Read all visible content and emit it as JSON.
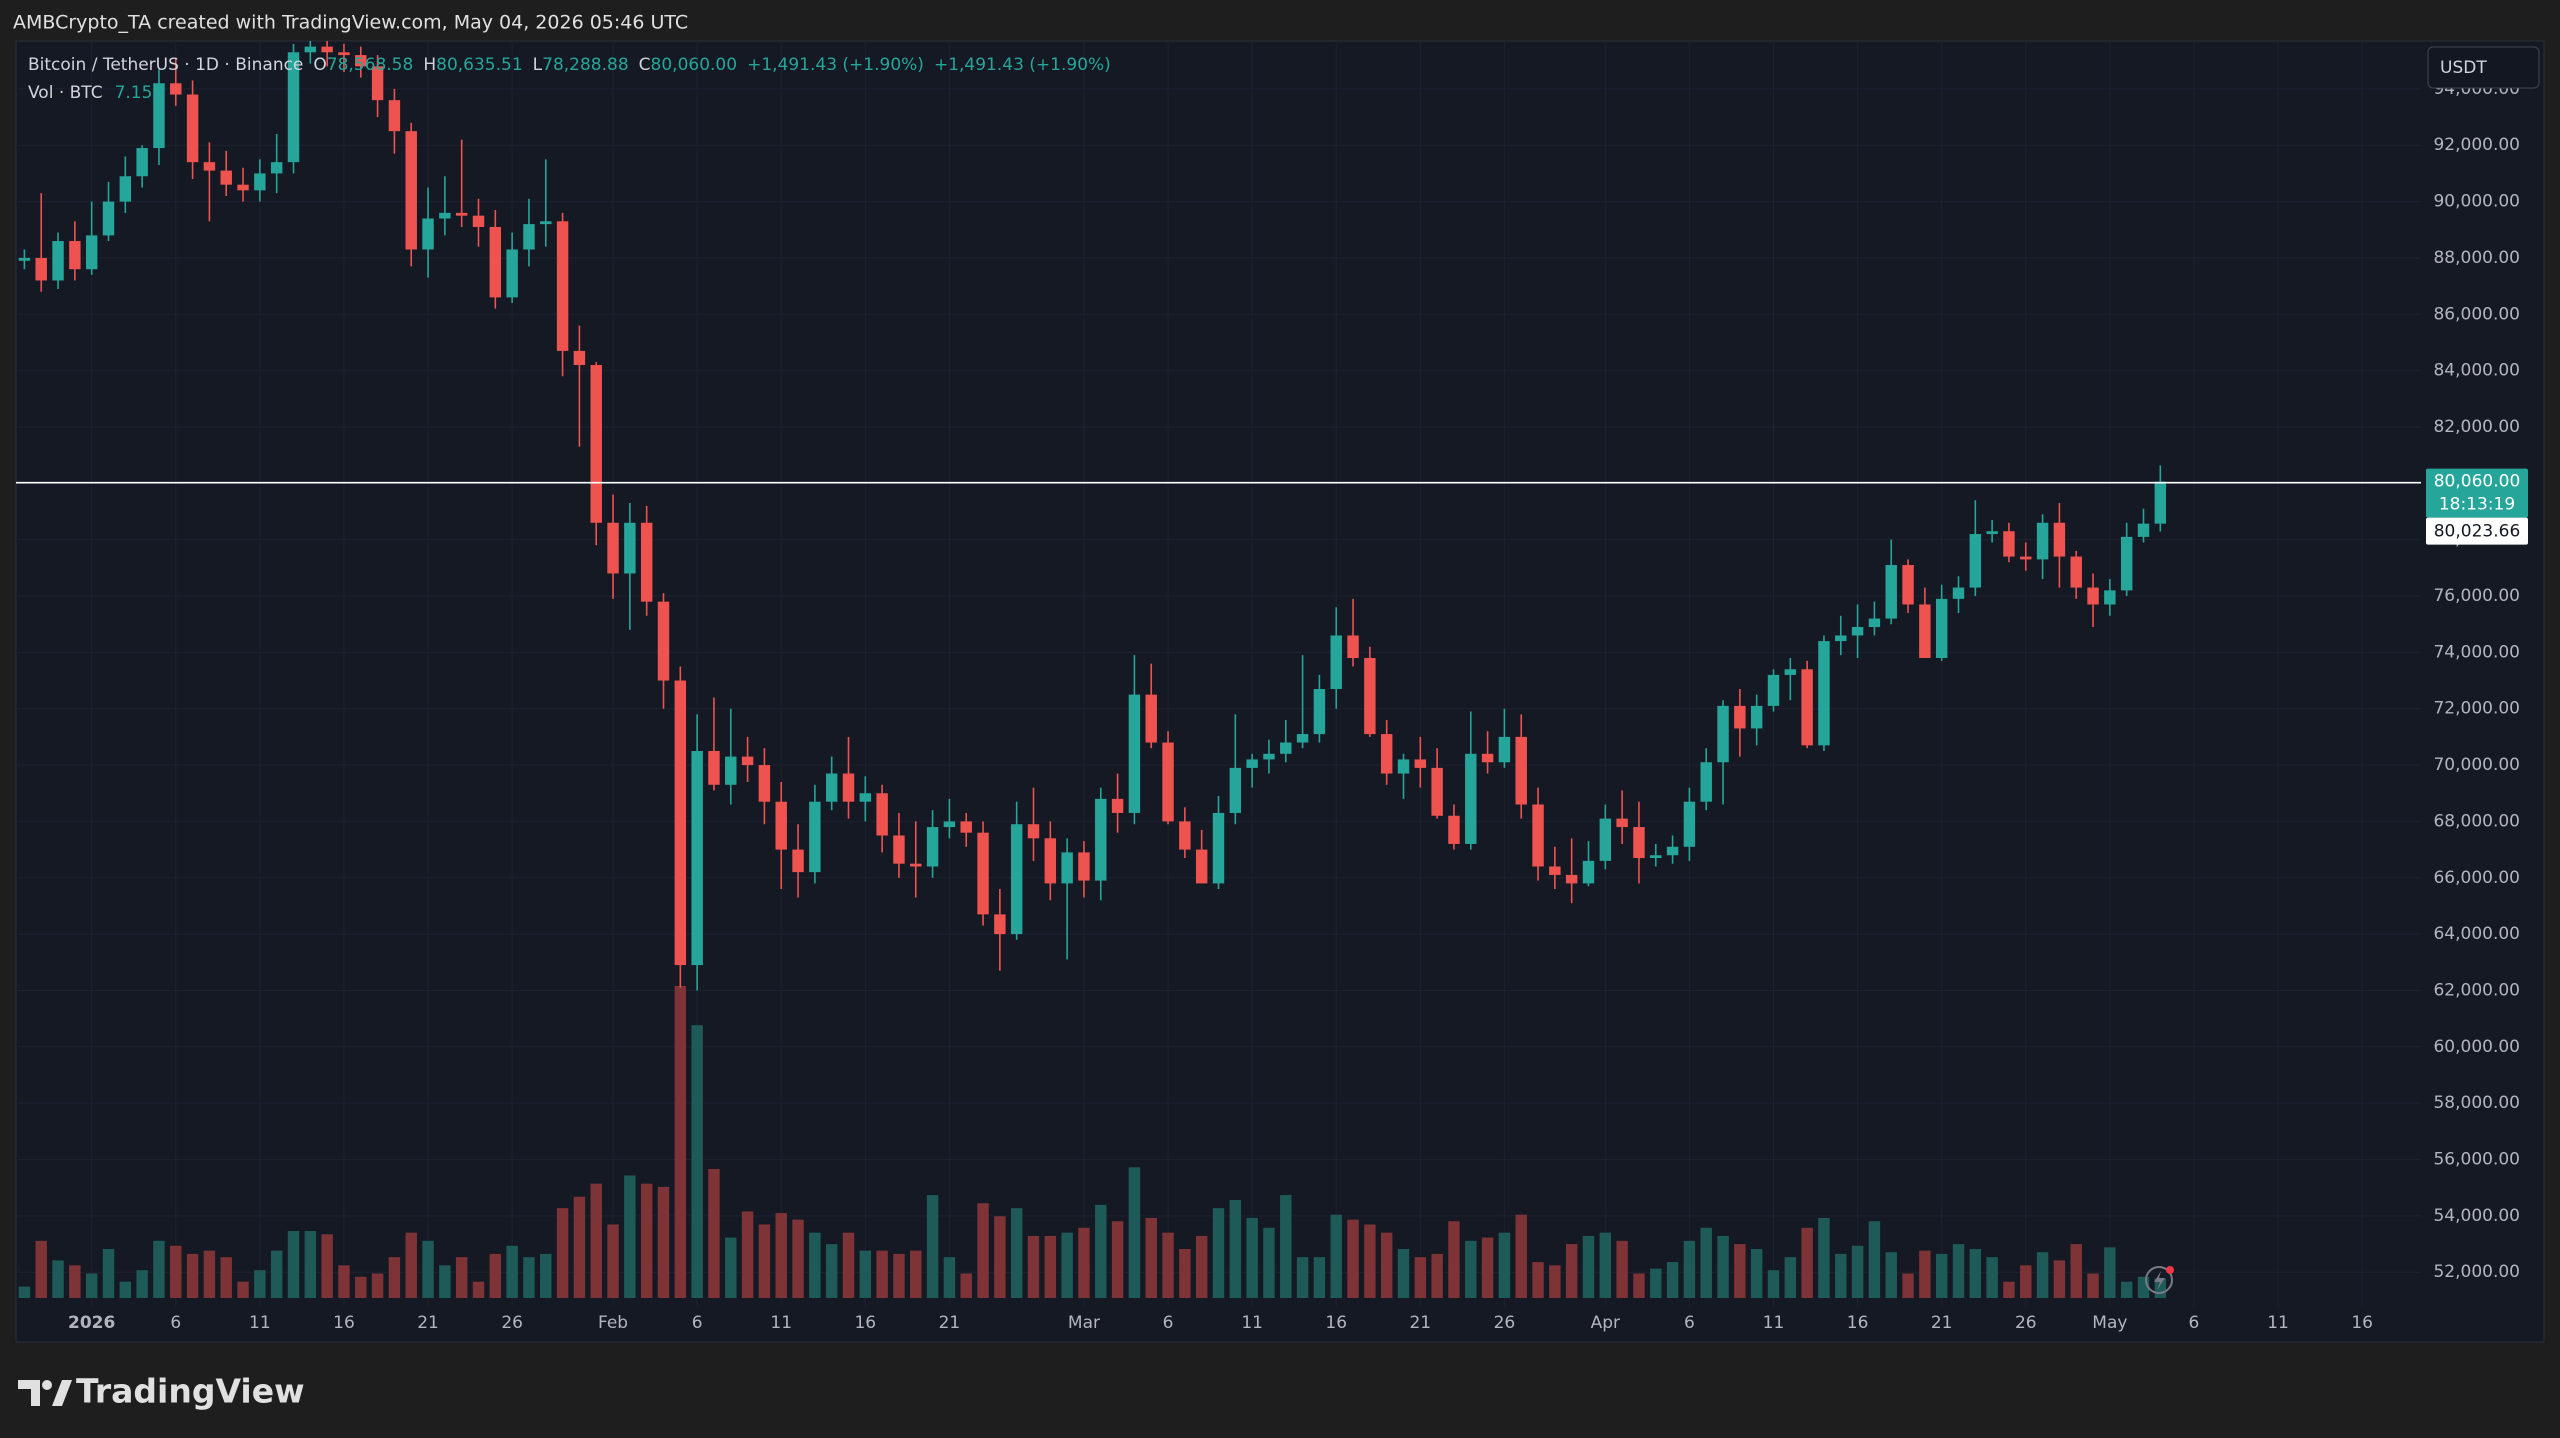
{
  "header": {
    "caption": "AMBCrypto_TA created with TradingView.com, May 04, 2026 05:46 UTC"
  },
  "footer": {
    "brand": "TradingView"
  },
  "chart_data": {
    "type": "candlestick",
    "title": "Bitcoin / TetherUS · 1D · Binance",
    "currency": "USDT",
    "ohlc_labels": {
      "O": "78,568.58",
      "H": "80,635.51",
      "L": "78,288.88",
      "C": "80,060.00"
    },
    "change_label": "+1,491.43 (+1.90%)",
    "volume_name": "Vol · BTC",
    "volume_label": "7.15K",
    "last_price_label": "80,060.00",
    "countdown": "18:13:19",
    "hline": {
      "value": 80023.66,
      "label": "80,023.66",
      "color": "#ffffff"
    },
    "up_color": "#26a69a",
    "down_color": "#ef5350",
    "volume_up_color": "#1e5b58",
    "volume_down_color": "#7e3336",
    "grid": true,
    "categories": [
      null,
      null,
      null,
      null,
      "2026",
      null,
      null,
      null,
      null,
      "6",
      null,
      null,
      null,
      null,
      "11",
      null,
      null,
      null,
      null,
      "16",
      null,
      null,
      null,
      null,
      "21",
      null,
      null,
      null,
      null,
      "26",
      null,
      null,
      null,
      null,
      null,
      "Feb",
      null,
      null,
      null,
      null,
      "6",
      null,
      null,
      null,
      null,
      "11",
      null,
      null,
      null,
      null,
      "16",
      null,
      null,
      null,
      null,
      "21",
      null,
      null,
      null,
      null,
      null,
      null,
      null,
      "Mar",
      null,
      null,
      null,
      null,
      "6",
      null,
      null,
      null,
      null,
      "11",
      null,
      null,
      null,
      null,
      "16",
      null,
      null,
      null,
      null,
      "21",
      null,
      null,
      null,
      null,
      "26",
      null,
      null,
      null,
      null,
      null,
      "Apr",
      null,
      null,
      null,
      null,
      "6",
      null,
      null,
      null,
      null,
      "11",
      null,
      null,
      null,
      null,
      "16",
      null,
      null,
      null,
      null,
      "21",
      null,
      null,
      null,
      null,
      "26",
      null,
      null,
      null,
      null,
      "May",
      null,
      null,
      null,
      null,
      "6",
      null,
      null,
      null,
      null,
      "11",
      null,
      null,
      null,
      null,
      "16",
      null,
      null,
      null
    ],
    "open": [
      87900,
      88000,
      87200,
      88600,
      87600,
      88800,
      90000,
      90900,
      91900,
      94200,
      93800,
      91400,
      91100,
      90600,
      90400,
      91000,
      91400,
      95300,
      95500,
      95300,
      95200,
      94800,
      93600,
      92500,
      88300,
      89400,
      89600,
      89500,
      89100,
      86600,
      88300,
      89200,
      89300,
      84700,
      84200,
      78600,
      76800,
      78600,
      75800,
      73000,
      62900,
      70500,
      69300,
      70300,
      70000,
      68700,
      67000,
      66200,
      68700,
      69700,
      68700,
      69000,
      67500,
      66500,
      66400,
      67800,
      68000,
      67600,
      64700,
      64000,
      67900,
      67400,
      65800,
      66900,
      65900,
      68800,
      68300,
      72500,
      70800,
      68000,
      67000,
      65800,
      68300,
      69900,
      70200,
      70400,
      70800,
      71100,
      72700,
      74600,
      73800,
      71100,
      69700,
      70200,
      69900,
      68200,
      67200,
      70400,
      70100,
      71000,
      68600,
      66400,
      66100,
      65800,
      66600,
      68100,
      67800,
      66700,
      66800,
      67100,
      68700,
      70100,
      72100,
      71300,
      72100,
      73200,
      73400,
      70700,
      74400,
      74600,
      74900,
      75200,
      77100,
      75700,
      73800,
      75900,
      76300,
      78200,
      78300,
      77400,
      77300,
      78600,
      77400,
      76300,
      75700,
      76200,
      78100,
      78568.58,
      null,
      null,
      null,
      null,
      null,
      null,
      null,
      null,
      null,
      null,
      null,
      null,
      null,
      null,
      null
    ],
    "high": [
      88300,
      90300,
      88900,
      89300,
      90000,
      90700,
      91600,
      92000,
      94700,
      95100,
      94300,
      92100,
      91800,
      91200,
      91500,
      92400,
      95600,
      95700,
      95700,
      95600,
      95500,
      95200,
      94000,
      92800,
      90500,
      90900,
      92200,
      90100,
      89700,
      88900,
      90100,
      91500,
      89600,
      85600,
      84300,
      79600,
      79300,
      79200,
      76100,
      73500,
      71800,
      72400,
      72000,
      71000,
      70600,
      69400,
      67900,
      69300,
      70300,
      71000,
      69600,
      69300,
      68300,
      68000,
      68400,
      68800,
      68300,
      68000,
      65600,
      68700,
      69200,
      68000,
      67400,
      67300,
      69200,
      69700,
      73900,
      73600,
      71200,
      68500,
      67700,
      68900,
      71800,
      70400,
      70900,
      71600,
      73900,
      73200,
      75600,
      75900,
      74200,
      71600,
      70400,
      71000,
      70600,
      68600,
      71900,
      71200,
      72000,
      71800,
      69200,
      67100,
      67400,
      67300,
      68600,
      69100,
      68700,
      67200,
      67500,
      69200,
      70600,
      72300,
      72700,
      72500,
      73400,
      73800,
      73700,
      74600,
      75300,
      75700,
      75800,
      78000,
      77300,
      76300,
      76400,
      76700,
      79400,
      78700,
      78600,
      77900,
      78900,
      79300,
      77600,
      76800,
      76600,
      78600,
      79100,
      80635.51,
      null,
      null,
      null,
      null,
      null,
      null,
      null,
      null,
      null,
      null,
      null,
      null,
      null,
      null,
      null
    ],
    "low": [
      87600,
      86800,
      86900,
      87200,
      87400,
      88600,
      89600,
      90500,
      91300,
      93400,
      90800,
      89300,
      90200,
      90000,
      90000,
      90300,
      91000,
      94900,
      94800,
      94600,
      94400,
      93000,
      91700,
      87700,
      87300,
      88800,
      89100,
      88400,
      86200,
      86400,
      87700,
      88400,
      83800,
      81300,
      77800,
      75900,
      74800,
      75300,
      72000,
      62100,
      62000,
      69100,
      68600,
      69400,
      67900,
      65600,
      65300,
      65800,
      68400,
      68100,
      68000,
      66900,
      66000,
      65300,
      66000,
      67400,
      67100,
      64300,
      62700,
      63800,
      66600,
      65200,
      63100,
      65300,
      65200,
      67600,
      67900,
      70600,
      67900,
      66700,
      65800,
      65600,
      67900,
      69200,
      69700,
      70100,
      70600,
      70800,
      72000,
      73500,
      71000,
      69300,
      68800,
      69200,
      68100,
      67000,
      67000,
      69700,
      69900,
      68100,
      65900,
      65600,
      65100,
      65700,
      66300,
      67200,
      65800,
      66400,
      66500,
      66600,
      68400,
      68600,
      70300,
      70700,
      71900,
      72300,
      70600,
      70500,
      73900,
      73800,
      74600,
      75000,
      75400,
      73800,
      73700,
      75400,
      76000,
      77900,
      77200,
      76900,
      76600,
      76300,
      75900,
      74900,
      75300,
      76000,
      77900,
      78288.88,
      null,
      null,
      null,
      null,
      null,
      null,
      null,
      null,
      null,
      null,
      null,
      null,
      null,
      null,
      null
    ],
    "close": [
      88000,
      87200,
      88600,
      87600,
      88800,
      90000,
      90900,
      91900,
      94200,
      93800,
      91400,
      91100,
      90600,
      90400,
      91000,
      91400,
      95300,
      95500,
      95300,
      95200,
      94800,
      93600,
      92500,
      88300,
      89400,
      89600,
      89500,
      89100,
      86600,
      88300,
      89200,
      89300,
      84700,
      84200,
      78600,
      76800,
      78600,
      75800,
      73000,
      62900,
      70500,
      69300,
      70300,
      70000,
      68700,
      67000,
      66200,
      68700,
      69700,
      68700,
      69000,
      67500,
      66500,
      66400,
      67800,
      68000,
      67600,
      64700,
      64000,
      67900,
      67400,
      65800,
      66900,
      65900,
      68800,
      68300,
      72500,
      70800,
      68000,
      67000,
      65800,
      68300,
      69900,
      70200,
      70400,
      70800,
      71100,
      72700,
      74600,
      73800,
      71100,
      69700,
      70200,
      69900,
      68200,
      67200,
      70400,
      70100,
      71000,
      68600,
      66400,
      66100,
      65800,
      66600,
      68100,
      67800,
      66700,
      66800,
      67100,
      68700,
      70100,
      72100,
      71300,
      72100,
      73200,
      73400,
      70700,
      74400,
      74600,
      74900,
      75200,
      77100,
      75700,
      73800,
      75900,
      76300,
      78200,
      78300,
      77400,
      77300,
      78600,
      77400,
      76300,
      75700,
      76200,
      78100,
      78568.57,
      80060,
      null,
      null,
      null,
      null,
      null,
      null,
      null,
      null,
      null,
      null,
      null,
      null,
      null,
      null,
      null
    ],
    "volume": [
      4200,
      21000,
      13800,
      12000,
      9000,
      18000,
      6000,
      10200,
      21000,
      19200,
      16200,
      17400,
      15000,
      6000,
      10200,
      17400,
      24600,
      24600,
      23400,
      12000,
      7800,
      9000,
      15000,
      24000,
      21000,
      12000,
      15000,
      6000,
      16200,
      19200,
      15000,
      16200,
      33000,
      37200,
      42000,
      27000,
      45000,
      42000,
      40800,
      114600,
      100200,
      47400,
      22200,
      31800,
      27000,
      31200,
      28800,
      24000,
      19800,
      24000,
      17400,
      17400,
      16200,
      17400,
      37800,
      15000,
      9000,
      34800,
      30000,
      33000,
      22800,
      22800,
      24000,
      25800,
      34200,
      28200,
      48000,
      29400,
      24000,
      18000,
      22800,
      33000,
      36000,
      29400,
      25800,
      37800,
      15000,
      15000,
      30600,
      28800,
      27000,
      24000,
      18000,
      15000,
      16200,
      28200,
      21000,
      22200,
      24000,
      30600,
      13200,
      12000,
      19800,
      22800,
      24000,
      21000,
      9000,
      10800,
      13200,
      21000,
      25800,
      22800,
      19800,
      18000,
      10200,
      15000,
      25800,
      29400,
      16200,
      19200,
      28200,
      16800,
      9000,
      17400,
      16200,
      19800,
      18000,
      15000,
      6000,
      12000,
      16800,
      13800,
      19800,
      9000,
      18600,
      6000,
      7800,
      7150,
      null,
      null,
      null,
      null,
      null,
      null,
      null,
      null,
      null,
      null,
      null,
      null,
      null,
      null,
      null
    ],
    "ylim": [
      50800,
      95700
    ],
    "yticks": [
      {
        "value": 52000,
        "label": "52,000.00"
      },
      {
        "value": 54000,
        "label": "54,000.00"
      },
      {
        "value": 56000,
        "label": "56,000.00"
      },
      {
        "value": 58000,
        "label": "58,000.00"
      },
      {
        "value": 60000,
        "label": "60,000.00"
      },
      {
        "value": 62000,
        "label": "62,000.00"
      },
      {
        "value": 64000,
        "label": "64,000.00"
      },
      {
        "value": 66000,
        "label": "66,000.00"
      },
      {
        "value": 68000,
        "label": "68,000.00"
      },
      {
        "value": 70000,
        "label": "70,000.00"
      },
      {
        "value": 72000,
        "label": "72,000.00"
      },
      {
        "value": 74000,
        "label": "74,000.00"
      },
      {
        "value": 76000,
        "label": "76,000.00"
      },
      {
        "value": 78000,
        "label": "78,000.00"
      },
      {
        "value": 80000,
        "label": "80,000.00"
      },
      {
        "value": 82000,
        "label": "82,000.00"
      },
      {
        "value": 84000,
        "label": "84,000.00"
      },
      {
        "value": 86000,
        "label": "86,000.00"
      },
      {
        "value": 88000,
        "label": "88,000.00"
      },
      {
        "value": 90000,
        "label": "90,000.00"
      },
      {
        "value": 92000,
        "label": "92,000.00"
      },
      {
        "value": 94000,
        "label": "94,000.00"
      }
    ]
  }
}
